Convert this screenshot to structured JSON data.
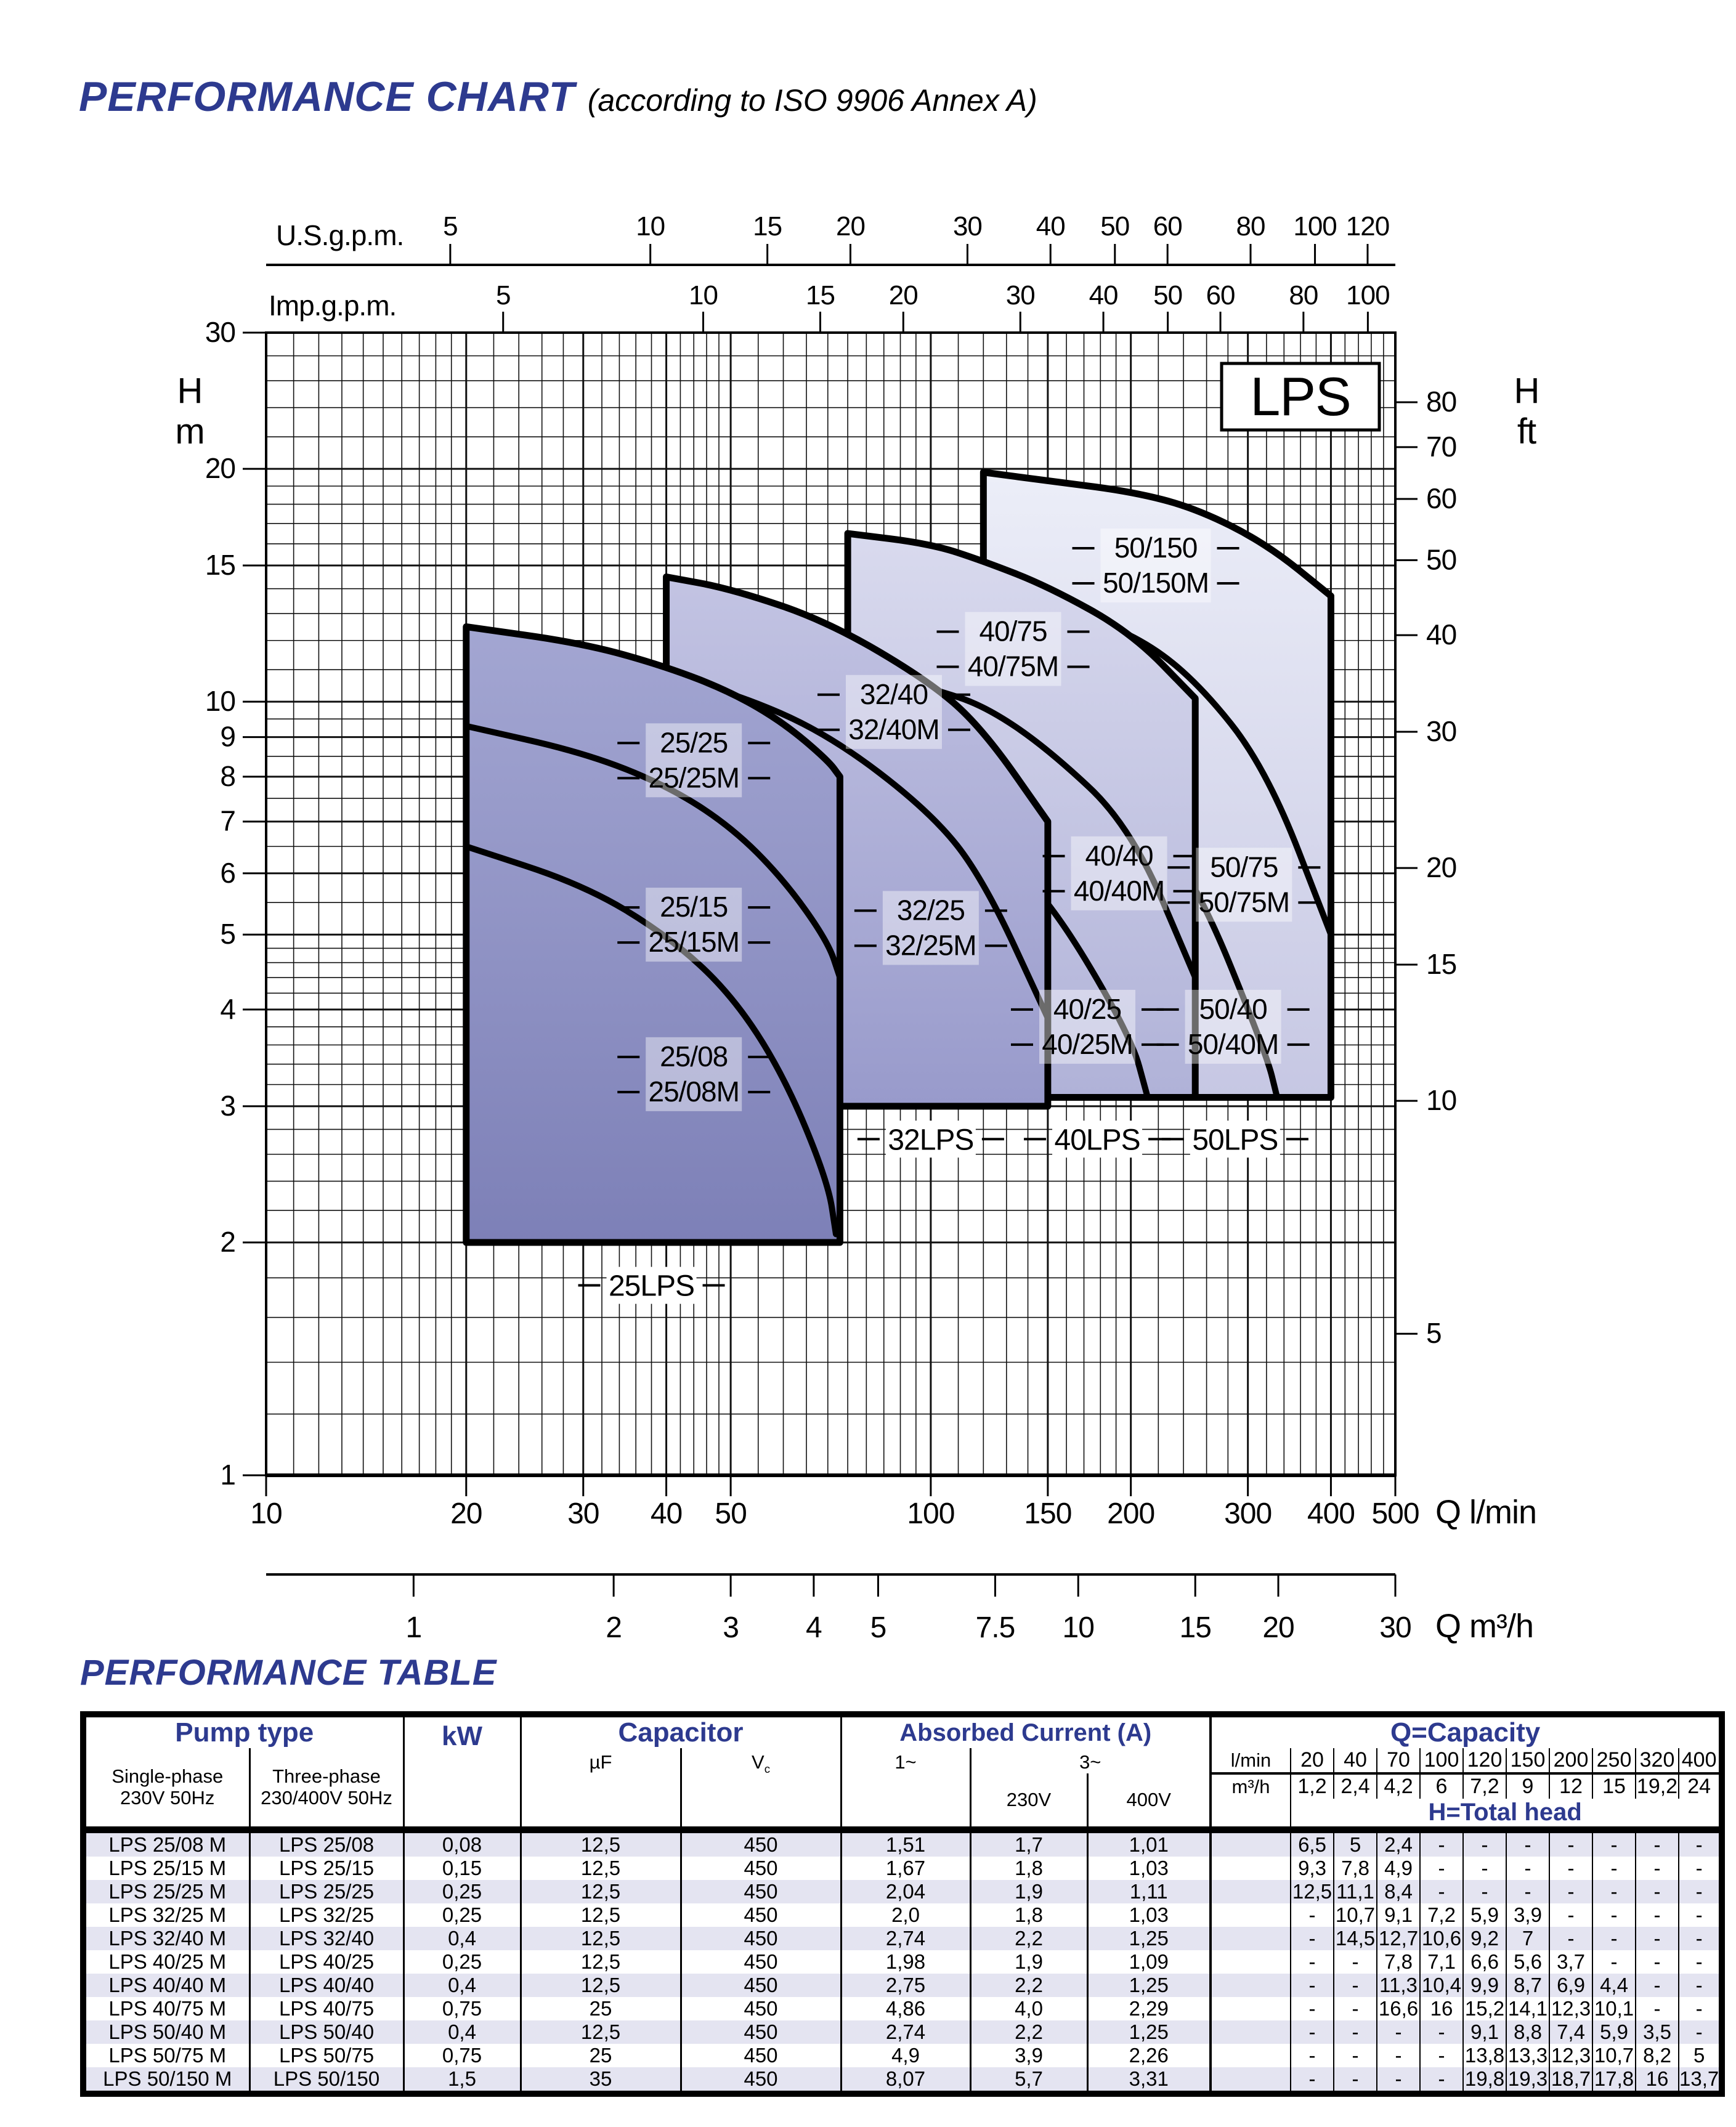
{
  "page": {
    "title_main": "PERFORMANCE CHART",
    "title_sub": "(according to ISO 9906 Annex A)",
    "table_title": "PERFORMANCE TABLE",
    "accent_color": "#2d3a8f",
    "stripe_color": "#e4e4f1"
  },
  "chart_data": {
    "type": "area",
    "scale": "log-log",
    "badge": "LPS",
    "x_axis_bottom_lmin": {
      "label": "Q l/min",
      "range": [
        10,
        500
      ],
      "ticks": [
        10,
        20,
        30,
        40,
        50,
        100,
        150,
        200,
        300,
        400,
        500
      ]
    },
    "x_axis_bottom_m3h": {
      "label": "Q m³/h",
      "ticks": [
        1,
        2,
        3,
        4,
        5,
        7.5,
        10,
        15,
        20,
        30
      ],
      "lmin_per_unit": 16.6667
    },
    "x_axis_top_usgpm": {
      "label": "U.S.g.p.m.",
      "ticks": [
        5,
        10,
        15,
        20,
        30,
        40,
        50,
        60,
        80,
        100,
        120
      ],
      "lmin_per_unit": 3.785
    },
    "x_axis_top_impgpm": {
      "label": "Imp.g.p.m.",
      "ticks": [
        5,
        10,
        15,
        20,
        30,
        40,
        50,
        60,
        80,
        100
      ],
      "lmin_per_unit": 4.546
    },
    "y_axis_left": {
      "label": [
        "H",
        "m"
      ],
      "range": [
        1,
        30
      ],
      "ticks": [
        30,
        20,
        15,
        10,
        9,
        8,
        7,
        6,
        5,
        4,
        3,
        2,
        1
      ]
    },
    "y_axis_right": {
      "label": [
        "H",
        "ft"
      ],
      "ticks": [
        80,
        70,
        60,
        50,
        40,
        30,
        20,
        15,
        10,
        5
      ],
      "m_per_unit": 0.3048
    },
    "grid": {
      "x_minor": [
        11,
        12,
        13,
        14,
        15,
        16,
        17,
        18,
        19,
        22,
        24,
        26,
        28,
        32,
        34,
        36,
        38,
        42,
        44,
        46,
        48,
        55,
        60,
        65,
        70,
        75,
        80,
        85,
        90,
        95,
        110,
        120,
        130,
        140,
        160,
        170,
        180,
        190,
        220,
        240,
        260,
        280,
        320,
        340,
        360,
        380,
        420,
        440,
        460,
        480
      ],
      "x_major": [
        10,
        20,
        30,
        40,
        50,
        100,
        150,
        200,
        300,
        400,
        500
      ],
      "y_minor": [
        1.2,
        1.4,
        1.6,
        1.8,
        2.2,
        2.4,
        2.6,
        2.8,
        3.2,
        3.4,
        3.6,
        3.8,
        4.2,
        4.4,
        4.6,
        4.8,
        5.5,
        6.5,
        7.5,
        8.5,
        9.5,
        11,
        12,
        13,
        14,
        16,
        17,
        18,
        19,
        22,
        24,
        26,
        28
      ],
      "y_major": [
        1,
        2,
        3,
        4,
        5,
        6,
        7,
        8,
        9,
        10,
        15,
        20,
        30
      ]
    },
    "groups": [
      {
        "name": "25LPS",
        "q_min": 20,
        "q_max": 73,
        "h_bottom": 2,
        "fill_top": "#a3a6d2",
        "fill_bottom": "#7d80b7",
        "group_label": {
          "text": "25LPS",
          "at": [
            38,
            1.76
          ]
        },
        "curves": [
          {
            "label": [
              "25/08",
              "25/08M"
            ],
            "label_at": [
              44,
              3.3
            ],
            "points": [
              [
                20,
                6.5
              ],
              [
                30,
                5.8
              ],
              [
                40,
                5.0
              ],
              [
                50,
                4.2
              ],
              [
                60,
                3.3
              ],
              [
                70,
                2.4
              ],
              [
                72,
                2.05
              ]
            ]
          },
          {
            "label": [
              "25/15",
              "25/15M"
            ],
            "label_at": [
              44,
              5.15
            ],
            "points": [
              [
                20,
                9.3
              ],
              [
                30,
                8.6
              ],
              [
                40,
                7.8
              ],
              [
                50,
                6.9
              ],
              [
                60,
                5.9
              ],
              [
                70,
                4.9
              ],
              [
                73,
                4.4
              ]
            ]
          },
          {
            "label": [
              "25/25",
              "25/25M"
            ],
            "label_at": [
              44,
              8.4
            ],
            "is_top": true,
            "points": [
              [
                20,
                12.5
              ],
              [
                30,
                11.9
              ],
              [
                40,
                11.1
              ],
              [
                50,
                10.3
              ],
              [
                60,
                9.4
              ],
              [
                70,
                8.4
              ],
              [
                73,
                8.0
              ]
            ]
          }
        ]
      },
      {
        "name": "32LPS",
        "q_min": 40,
        "q_max": 150,
        "h_bottom": 3,
        "fill_top": "#c3c4e3",
        "fill_bottom": "#989acb",
        "group_label": {
          "text": "32LPS",
          "at": [
            100,
            2.72
          ]
        },
        "curves": [
          {
            "label": [
              "32/25",
              "32/25M"
            ],
            "label_at": [
              100,
              5.1
            ],
            "points": [
              [
                40,
                10.7
              ],
              [
                50,
                10.3
              ],
              [
                70,
                9.1
              ],
              [
                100,
                7.2
              ],
              [
                120,
                5.9
              ],
              [
                150,
                3.9
              ]
            ]
          },
          {
            "label": [
              "32/40",
              "32/40M"
            ],
            "label_at": [
              88,
              9.7
            ],
            "is_top": true,
            "points": [
              [
                40,
                14.5
              ],
              [
                50,
                14.0
              ],
              [
                70,
                12.7
              ],
              [
                100,
                10.6
              ],
              [
                120,
                9.2
              ],
              [
                150,
                7.0
              ]
            ]
          }
        ]
      },
      {
        "name": "40LPS",
        "q_min": 75,
        "q_max": 250,
        "h_bottom": 3.08,
        "fill_top": "#d9daee",
        "fill_bottom": "#b0b2d8",
        "group_label": {
          "text": "40LPS",
          "at": [
            178,
            2.72
          ]
        },
        "curves": [
          {
            "label": [
              "40/25",
              "40/25M"
            ],
            "label_at": [
              172,
              3.8
            ],
            "points": [
              [
                75,
                7.7
              ],
              [
                100,
                7.1
              ],
              [
                120,
                6.6
              ],
              [
                150,
                5.6
              ],
              [
                200,
                3.7
              ],
              [
                212,
                3.08
              ]
            ]
          },
          {
            "label": [
              "40/40",
              "40/40M"
            ],
            "label_at": [
              192,
              6.0
            ],
            "points": [
              [
                75,
                11.2
              ],
              [
                100,
                10.4
              ],
              [
                120,
                9.9
              ],
              [
                150,
                8.7
              ],
              [
                200,
                6.9
              ],
              [
                250,
                4.4
              ]
            ]
          },
          {
            "label": [
              "40/75",
              "40/75M"
            ],
            "label_at": [
              133,
              11.7
            ],
            "is_top": true,
            "points": [
              [
                75,
                16.5
              ],
              [
                100,
                16.0
              ],
              [
                120,
                15.2
              ],
              [
                150,
                14.1
              ],
              [
                200,
                12.3
              ],
              [
                250,
                10.1
              ]
            ]
          }
        ]
      },
      {
        "name": "50LPS",
        "q_min": 120,
        "q_max": 400,
        "h_bottom": 3.08,
        "fill_top": "#eceef8",
        "fill_bottom": "#c6c7e3",
        "group_label": {
          "text": "50LPS",
          "at": [
            287,
            2.72
          ]
        },
        "curves": [
          {
            "label": [
              "50/40",
              "50/40M"
            ],
            "label_at": [
              285,
              3.8
            ],
            "points": [
              [
                120,
                9.1
              ],
              [
                150,
                8.8
              ],
              [
                200,
                7.4
              ],
              [
                250,
                5.9
              ],
              [
                320,
                3.5
              ],
              [
                332,
                3.08
              ]
            ]
          },
          {
            "label": [
              "50/75",
              "50/75M"
            ],
            "label_at": [
              296,
              5.8
            ],
            "points": [
              [
                120,
                13.8
              ],
              [
                150,
                13.3
              ],
              [
                200,
                12.3
              ],
              [
                250,
                10.7
              ],
              [
                320,
                8.2
              ],
              [
                400,
                5.0
              ]
            ]
          },
          {
            "label": [
              "50/150",
              "50/150M"
            ],
            "label_at": [
              218,
              15.0
            ],
            "is_top": true,
            "points": [
              [
                120,
                19.8
              ],
              [
                150,
                19.3
              ],
              [
                200,
                18.7
              ],
              [
                250,
                17.8
              ],
              [
                320,
                16.0
              ],
              [
                400,
                13.7
              ]
            ]
          }
        ]
      }
    ]
  },
  "table": {
    "headers": {
      "pump_type": "Pump type",
      "single": [
        "Single-phase",
        "230V 50Hz"
      ],
      "three": [
        "Three-phase",
        "230/400V 50Hz"
      ],
      "kw": "kW",
      "capacitor": "Capacitor",
      "uf": "µF",
      "vc": [
        "V",
        "c"
      ],
      "absorbed": "Absorbed Current (A)",
      "one_ph": "1~",
      "three_ph": "3~",
      "v230": "230V",
      "v400": "400V",
      "q_capacity": "Q=Capacity",
      "h_total": "H=Total head",
      "lmin": "l/min",
      "m3h": "m³/h"
    },
    "capacity_lmin": [
      "20",
      "40",
      "70",
      "100",
      "120",
      "150",
      "200",
      "250",
      "320",
      "400"
    ],
    "capacity_m3h": [
      "1,2",
      "2,4",
      "4,2",
      "6",
      "7,2",
      "9",
      "12",
      "15",
      "19,2",
      "24"
    ],
    "rows": [
      {
        "single": "LPS 25/08 M",
        "three": "LPS 25/08",
        "kw": "0,08",
        "uf": "12,5",
        "vc": "450",
        "i1": "1,51",
        "i230": "1,7",
        "i400": "1,01",
        "heads": [
          "6,5",
          "5",
          "2,4",
          "-",
          "-",
          "-",
          "-",
          "-",
          "-",
          "-"
        ]
      },
      {
        "single": "LPS 25/15 M",
        "three": "LPS 25/15",
        "kw": "0,15",
        "uf": "12,5",
        "vc": "450",
        "i1": "1,67",
        "i230": "1,8",
        "i400": "1,03",
        "heads": [
          "9,3",
          "7,8",
          "4,9",
          "-",
          "-",
          "-",
          "-",
          "-",
          "-",
          "-"
        ]
      },
      {
        "single": "LPS 25/25 M",
        "three": "LPS 25/25",
        "kw": "0,25",
        "uf": "12,5",
        "vc": "450",
        "i1": "2,04",
        "i230": "1,9",
        "i400": "1,11",
        "heads": [
          "12,5",
          "11,1",
          "8,4",
          "-",
          "-",
          "-",
          "-",
          "-",
          "-",
          "-"
        ]
      },
      {
        "single": "LPS 32/25 M",
        "three": "LPS 32/25",
        "kw": "0,25",
        "uf": "12,5",
        "vc": "450",
        "i1": "2,0",
        "i230": "1,8",
        "i400": "1,03",
        "heads": [
          "-",
          "10,7",
          "9,1",
          "7,2",
          "5,9",
          "3,9",
          "-",
          "-",
          "-",
          "-"
        ]
      },
      {
        "single": "LPS 32/40 M",
        "three": "LPS 32/40",
        "kw": "0,4",
        "uf": "12,5",
        "vc": "450",
        "i1": "2,74",
        "i230": "2,2",
        "i400": "1,25",
        "heads": [
          "-",
          "14,5",
          "12,7",
          "10,6",
          "9,2",
          "7",
          "-",
          "-",
          "-",
          "-"
        ]
      },
      {
        "single": "LPS 40/25 M",
        "three": "LPS 40/25",
        "kw": "0,25",
        "uf": "12,5",
        "vc": "450",
        "i1": "1,98",
        "i230": "1,9",
        "i400": "1,09",
        "heads": [
          "-",
          "-",
          "7,8",
          "7,1",
          "6,6",
          "5,6",
          "3,7",
          "-",
          "-",
          "-"
        ]
      },
      {
        "single": "LPS 40/40 M",
        "three": "LPS 40/40",
        "kw": "0,4",
        "uf": "12,5",
        "vc": "450",
        "i1": "2,75",
        "i230": "2,2",
        "i400": "1,25",
        "heads": [
          "-",
          "-",
          "11,3",
          "10,4",
          "9,9",
          "8,7",
          "6,9",
          "4,4",
          "-",
          "-"
        ]
      },
      {
        "single": "LPS 40/75 M",
        "three": "LPS 40/75",
        "kw": "0,75",
        "uf": "25",
        "vc": "450",
        "i1": "4,86",
        "i230": "4,0",
        "i400": "2,29",
        "heads": [
          "-",
          "-",
          "16,6",
          "16",
          "15,2",
          "14,1",
          "12,3",
          "10,1",
          "-",
          "-"
        ]
      },
      {
        "single": "LPS 50/40 M",
        "three": "LPS 50/40",
        "kw": "0,4",
        "uf": "12,5",
        "vc": "450",
        "i1": "2,74",
        "i230": "2,2",
        "i400": "1,25",
        "heads": [
          "-",
          "-",
          "-",
          "-",
          "9,1",
          "8,8",
          "7,4",
          "5,9",
          "3,5",
          "-"
        ]
      },
      {
        "single": "LPS 50/75 M",
        "three": "LPS 50/75",
        "kw": "0,75",
        "uf": "25",
        "vc": "450",
        "i1": "4,9",
        "i230": "3,9",
        "i400": "2,26",
        "heads": [
          "-",
          "-",
          "-",
          "-",
          "13,8",
          "13,3",
          "12,3",
          "10,7",
          "8,2",
          "5"
        ]
      },
      {
        "single": "LPS 50/150 M",
        "three": "LPS 50/150",
        "kw": "1,5",
        "uf": "35",
        "vc": "450",
        "i1": "8,07",
        "i230": "5,7",
        "i400": "3,31",
        "heads": [
          "-",
          "-",
          "-",
          "-",
          "19,8",
          "19,3",
          "18,7",
          "17,8",
          "16",
          "13,7"
        ]
      }
    ]
  }
}
